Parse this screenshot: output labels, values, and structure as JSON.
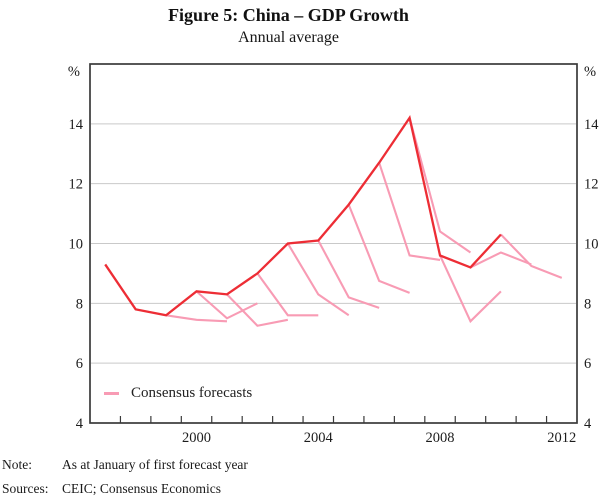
{
  "figure": {
    "title": "Figure 5: China – GDP Growth",
    "subtitle": "Annual average"
  },
  "legend": {
    "label": "Consensus forecasts"
  },
  "note": {
    "label": "Note:",
    "text": "As at January of first forecast year"
  },
  "sources": {
    "label": "Sources:",
    "text": "CEIC; Consensus Economics"
  },
  "chart_data": {
    "type": "line",
    "title": "Figure 5: China – GDP Growth",
    "subtitle": "Annual average",
    "unit_label": "%",
    "unit_label_both_sides": true,
    "ylim": [
      4,
      16
    ],
    "yticks": [
      4,
      6,
      8,
      10,
      12,
      14
    ],
    "ytick_labels_both_sides": true,
    "xlim": [
      1997,
      2013
    ],
    "xtick_years_minor": [
      1998,
      1999,
      2000,
      2001,
      2002,
      2003,
      2004,
      2005,
      2006,
      2007,
      2008,
      2009,
      2010,
      2011,
      2012
    ],
    "xtick_label_years": [
      2000,
      2004,
      2008,
      2012
    ],
    "x_points_at_year_midpoint": true,
    "grid": "horizontal",
    "legend_position": "bottom-left-inside",
    "colors": {
      "actual": "#ed2d35",
      "forecast": "#f89bb4",
      "gridline": "#c9c9c9",
      "frame": "#3a3a3a"
    },
    "series": [
      {
        "name": "GDP growth (actual)",
        "role": "actual",
        "color": "#ed2d35",
        "x": [
          1997,
          1998,
          1999,
          2000,
          2001,
          2002,
          2003,
          2004,
          2005,
          2006,
          2007,
          2008,
          2009,
          2010
        ],
        "values": [
          9.3,
          7.8,
          7.6,
          8.4,
          8.3,
          9.0,
          10.0,
          10.1,
          11.3,
          12.7,
          14.2,
          9.6,
          9.2,
          10.3
        ]
      }
    ],
    "forecast_series": [
      {
        "name": "Consensus forecast, Jan 2000",
        "color": "#f89bb4",
        "x": [
          1999,
          2000,
          2001
        ],
        "values": [
          7.6,
          7.45,
          7.4
        ]
      },
      {
        "name": "Consensus forecast, Jan 2001",
        "color": "#f89bb4",
        "x": [
          2000,
          2001,
          2002
        ],
        "values": [
          8.4,
          7.5,
          8.0
        ]
      },
      {
        "name": "Consensus forecast, Jan 2002",
        "color": "#f89bb4",
        "x": [
          2001,
          2002,
          2003
        ],
        "values": [
          8.3,
          7.25,
          7.45
        ]
      },
      {
        "name": "Consensus forecast, Jan 2003",
        "color": "#f89bb4",
        "x": [
          2002,
          2003,
          2004
        ],
        "values": [
          9.0,
          7.6,
          7.6
        ]
      },
      {
        "name": "Consensus forecast, Jan 2004",
        "color": "#f89bb4",
        "x": [
          2003,
          2004,
          2005
        ],
        "values": [
          10.0,
          8.3,
          7.6
        ]
      },
      {
        "name": "Consensus forecast, Jan 2005",
        "color": "#f89bb4",
        "x": [
          2004,
          2005,
          2006
        ],
        "values": [
          10.1,
          8.2,
          7.85
        ]
      },
      {
        "name": "Consensus forecast, Jan 2006",
        "color": "#f89bb4",
        "x": [
          2005,
          2006,
          2007
        ],
        "values": [
          11.3,
          8.75,
          8.35
        ]
      },
      {
        "name": "Consensus forecast, Jan 2007",
        "color": "#f89bb4",
        "x": [
          2006,
          2007,
          2008
        ],
        "values": [
          12.7,
          9.6,
          9.45
        ]
      },
      {
        "name": "Consensus forecast, Jan 2008",
        "color": "#f89bb4",
        "x": [
          2007,
          2008,
          2009
        ],
        "values": [
          14.2,
          10.4,
          9.7
        ]
      },
      {
        "name": "Consensus forecast, Jan 2009",
        "color": "#f89bb4",
        "x": [
          2008,
          2009,
          2010
        ],
        "values": [
          9.6,
          7.4,
          8.4
        ]
      },
      {
        "name": "Consensus forecast, Jan 2010",
        "color": "#f89bb4",
        "x": [
          2009,
          2010,
          2011
        ],
        "values": [
          9.2,
          9.7,
          9.3
        ]
      },
      {
        "name": "Consensus forecast, Jan 2011",
        "color": "#f89bb4",
        "x": [
          2010,
          2011,
          2012
        ],
        "values": [
          10.3,
          9.25,
          8.85
        ]
      }
    ]
  }
}
